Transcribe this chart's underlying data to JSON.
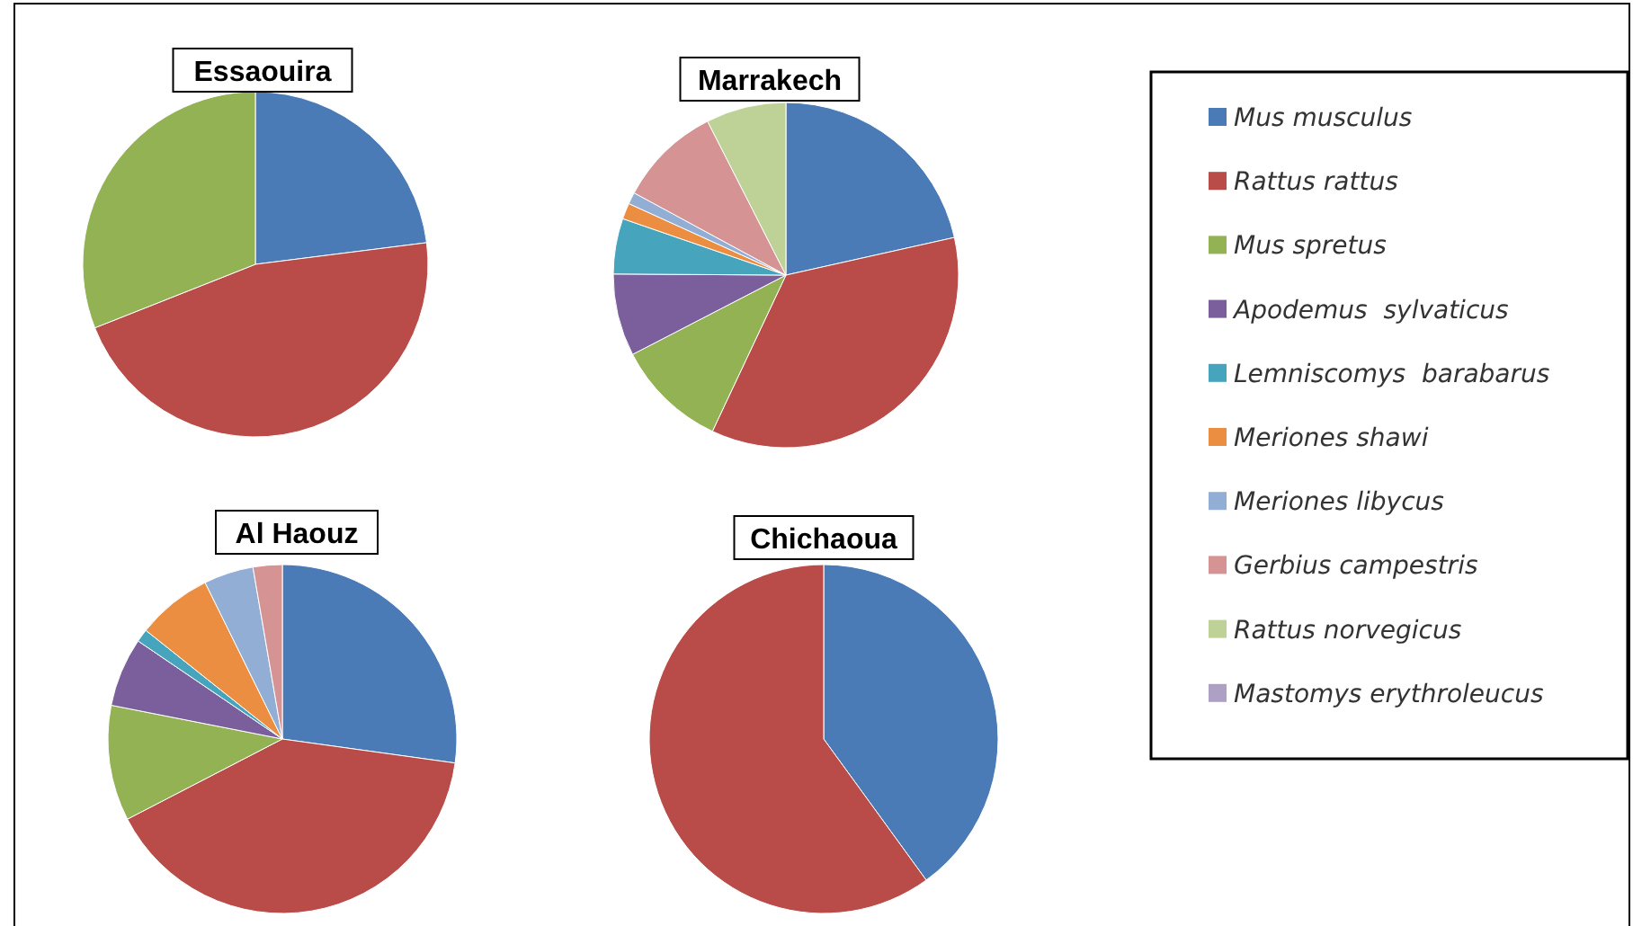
{
  "chart_data": {
    "type": "pie",
    "legend": "right",
    "categories": [
      "Mus musculus",
      "Rattus rattus",
      "Mus spretus",
      "Apodemus  sylvaticus",
      "Lemniscomys  barabarus",
      "Meriones shawi",
      "Meriones libycus",
      "Gerbius campestris",
      "Rattus norvegicus",
      "Mastomys erythroleucus"
    ],
    "colors": [
      "#4a7bb7",
      "#b94c49",
      "#92b254",
      "#7a5f9c",
      "#46a4bd",
      "#ec8e42",
      "#93aed4",
      "#d59493",
      "#bed297",
      "#ada0c4"
    ],
    "series": [
      {
        "name": "Essaouira",
        "values": [
          23,
          46,
          31,
          0,
          0,
          0,
          0,
          0,
          0,
          0
        ]
      },
      {
        "name": "Marrakech",
        "values": [
          21.5,
          35.5,
          10.4,
          7.7,
          5.2,
          1.5,
          1.1,
          9.6,
          7.5,
          0
        ]
      },
      {
        "name": "Al Haouz",
        "values": [
          27.2,
          40.2,
          10.7,
          6.4,
          1.2,
          7,
          4.6,
          2.7,
          0,
          0
        ]
      },
      {
        "name": "Chichaoua",
        "values": [
          40,
          60,
          0,
          0,
          0,
          0,
          0,
          0,
          0,
          0
        ]
      }
    ]
  }
}
